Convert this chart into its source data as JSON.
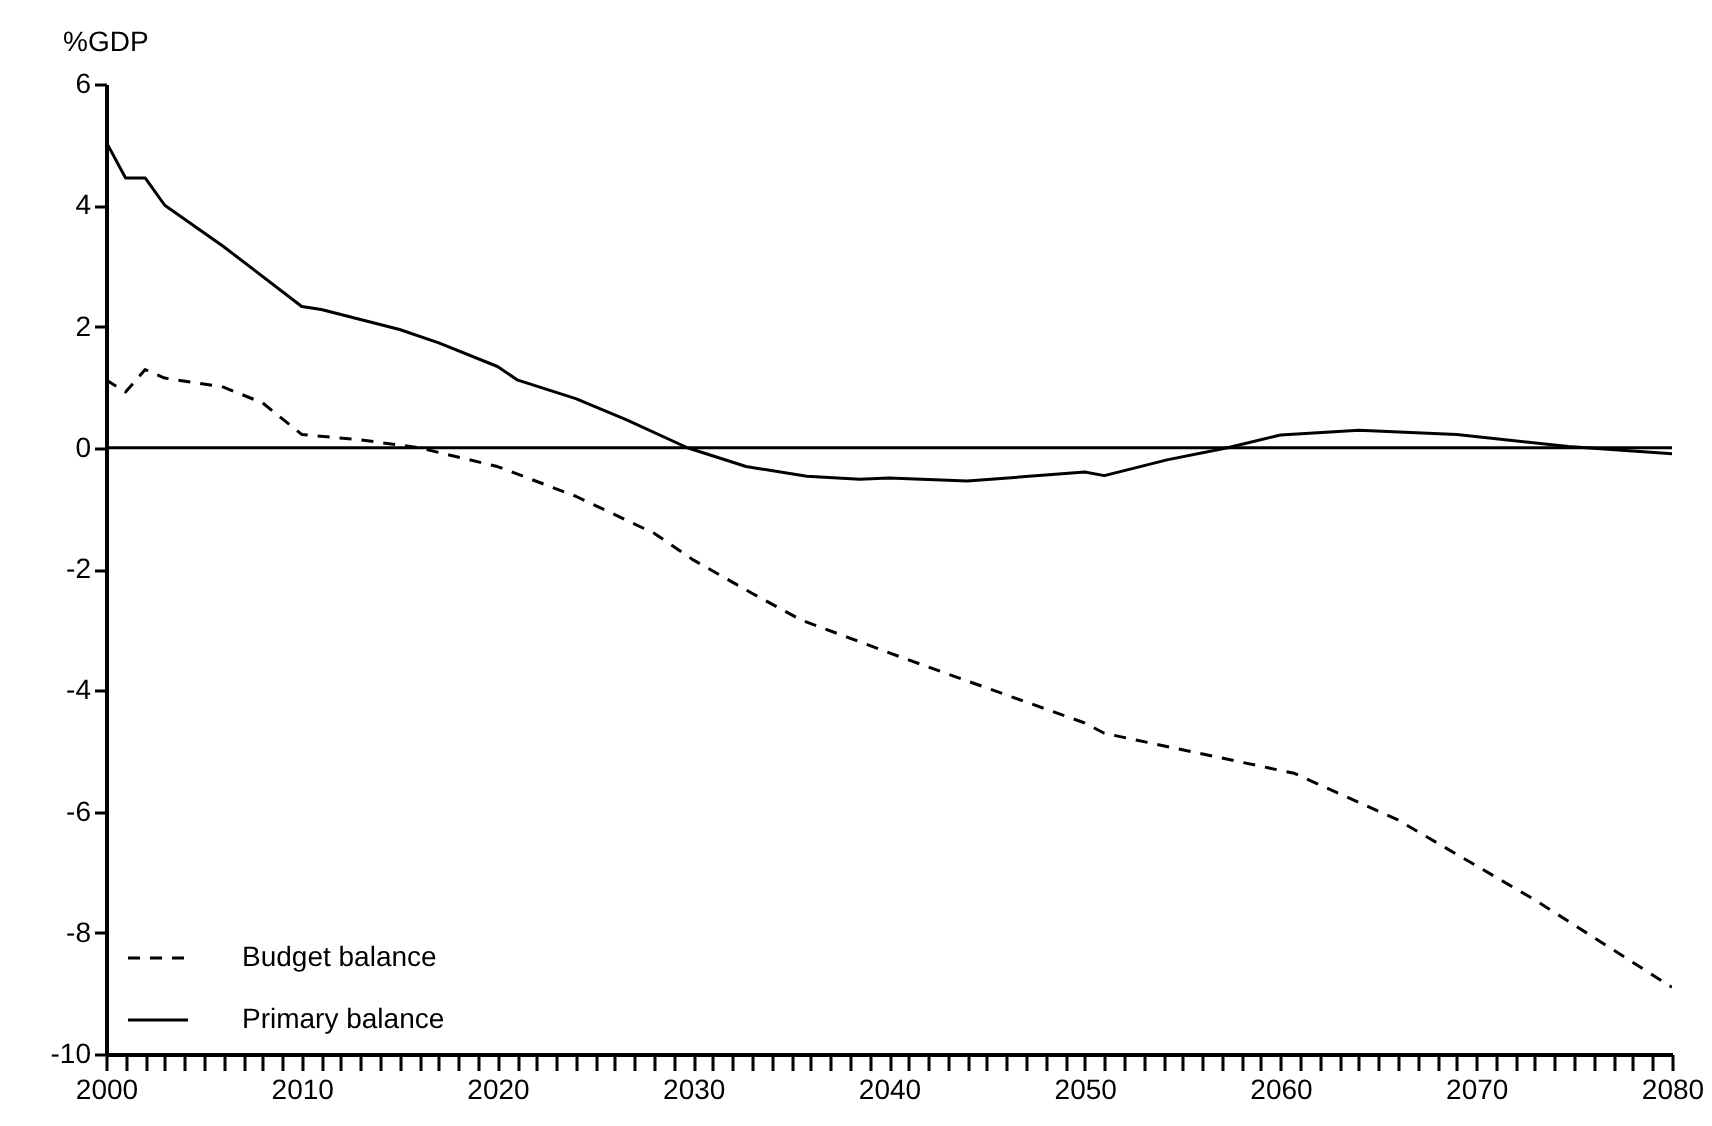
{
  "chart_data": {
    "type": "line",
    "ylabel": "%GDP",
    "xlim": [
      2000,
      2080
    ],
    "ylim": [
      -10,
      6
    ],
    "yticks": [
      -10,
      -8,
      -6,
      -4,
      -2,
      0,
      2,
      4,
      6
    ],
    "xticks": [
      2000,
      {
        "value": 2001,
        "label": null
      },
      {
        "value": 2002,
        "label": null
      },
      {
        "value": 2003,
        "label": null
      },
      {
        "value": 2004,
        "label": null
      },
      {
        "value": 2005,
        "label": null
      },
      {
        "value": 2006,
        "label": null
      },
      {
        "value": 2007,
        "label": null
      },
      {
        "value": 2008,
        "label": null
      },
      {
        "value": 2009,
        "label": null
      },
      2010,
      {
        "value": 2011,
        "label": null
      },
      {
        "value": 2012,
        "label": null
      },
      {
        "value": 2013,
        "label": null
      },
      {
        "value": 2014,
        "label": null
      },
      {
        "value": 2015,
        "label": null
      },
      {
        "value": 2016,
        "label": null
      },
      {
        "value": 2017,
        "label": null
      },
      {
        "value": 2018,
        "label": null
      },
      {
        "value": 2019,
        "label": null
      },
      2020,
      {
        "value": 2021,
        "label": null
      },
      {
        "value": 2022,
        "label": null
      },
      {
        "value": 2023,
        "label": null
      },
      {
        "value": 2024,
        "label": null
      },
      {
        "value": 2025,
        "label": null
      },
      {
        "value": 2026,
        "label": null
      },
      {
        "value": 2027,
        "label": null
      },
      {
        "value": 2028,
        "label": null
      },
      {
        "value": 2029,
        "label": null
      },
      2030,
      {
        "value": 2031,
        "label": null
      },
      {
        "value": 2032,
        "label": null
      },
      {
        "value": 2033,
        "label": null
      },
      {
        "value": 2034,
        "label": null
      },
      {
        "value": 2035,
        "label": null
      },
      {
        "value": 2036,
        "label": null
      },
      {
        "value": 2037,
        "label": null
      },
      {
        "value": 2038,
        "label": null
      },
      {
        "value": 2039,
        "label": null
      },
      2040,
      {
        "value": 2041,
        "label": null
      },
      {
        "value": 2042,
        "label": null
      },
      {
        "value": 2043,
        "label": null
      },
      {
        "value": 2044,
        "label": null
      },
      {
        "value": 2045,
        "label": null
      },
      {
        "value": 2046,
        "label": null
      },
      {
        "value": 2047,
        "label": null
      },
      {
        "value": 2048,
        "label": null
      },
      {
        "value": 2049,
        "label": null
      },
      2050,
      {
        "value": 2051,
        "label": null
      },
      {
        "value": 2052,
        "label": null
      },
      {
        "value": 2053,
        "label": null
      },
      {
        "value": 2054,
        "label": null
      },
      {
        "value": 2055,
        "label": null
      },
      {
        "value": 2056,
        "label": null
      },
      {
        "value": 2057,
        "label": null
      },
      {
        "value": 2058,
        "label": null
      },
      {
        "value": 2059,
        "label": null
      },
      2060,
      {
        "value": 2061,
        "label": null
      },
      {
        "value": 2062,
        "label": null
      },
      {
        "value": 2063,
        "label": null
      },
      {
        "value": 2064,
        "label": null
      },
      {
        "value": 2065,
        "label": null
      },
      {
        "value": 2066,
        "label": null
      },
      {
        "value": 2067,
        "label": null
      },
      {
        "value": 2068,
        "label": null
      },
      {
        "value": 2069,
        "label": null
      },
      2070,
      {
        "value": 2071,
        "label": null
      },
      {
        "value": 2072,
        "label": null
      },
      {
        "value": 2073,
        "label": null
      },
      {
        "value": 2074,
        "label": null
      },
      {
        "value": 2075,
        "label": null
      },
      {
        "value": 2076,
        "label": null
      },
      {
        "value": 2077,
        "label": null
      },
      {
        "value": 2078,
        "label": null
      },
      {
        "value": 2079,
        "label": null
      },
      2080
    ],
    "grid": false,
    "legend": "bottom left",
    "marker": "none",
    "ref_lines": [
      {
        "axis": "y",
        "value": 0,
        "color": "#000000",
        "line_style": "solid"
      }
    ],
    "series": [
      {
        "name": "Budget balance",
        "color": "#000000",
        "line_style": "dashed",
        "x": [
          2000,
          2001,
          2002,
          2003,
          2006,
          2008,
          2010,
          2013,
          2016,
          2020,
          2024,
          2028,
          2030,
          2033,
          2035.5,
          2041,
          2050,
          2051,
          2060.7,
          2066,
          2073,
          2080
        ],
        "values": [
          1.12,
          0.92,
          1.29,
          1.15,
          1.0,
          0.74,
          0.22,
          0.13,
          0,
          -0.31,
          -0.8,
          -1.41,
          -1.85,
          -2.4,
          -2.84,
          -3.5,
          -4.54,
          -4.71,
          -5.37,
          -6.14,
          -7.46,
          -8.9
        ]
      },
      {
        "name": "Primary balance",
        "color": "#000000",
        "line_style": "solid",
        "x": [
          2000,
          2001,
          2002,
          2003,
          2006,
          2010,
          2011,
          2015,
          2017,
          2020,
          2021,
          2024,
          2026.6,
          2029.7,
          2032.7,
          2035.8,
          2038.5,
          2040,
          2044,
          2050,
          2051,
          2054.2,
          2057.3,
          2060,
          2064,
          2069,
          2074.7,
          2080
        ],
        "values": [
          5.05,
          4.45,
          4.45,
          4.0,
          3.32,
          2.33,
          2.28,
          1.95,
          1.73,
          1.34,
          1.12,
          0.81,
          0.46,
          0,
          -0.31,
          -0.47,
          -0.52,
          -0.5,
          -0.55,
          -0.4,
          -0.46,
          -0.2,
          0,
          0.21,
          0.29,
          0.22,
          0.02,
          -0.1
        ]
      }
    ]
  }
}
